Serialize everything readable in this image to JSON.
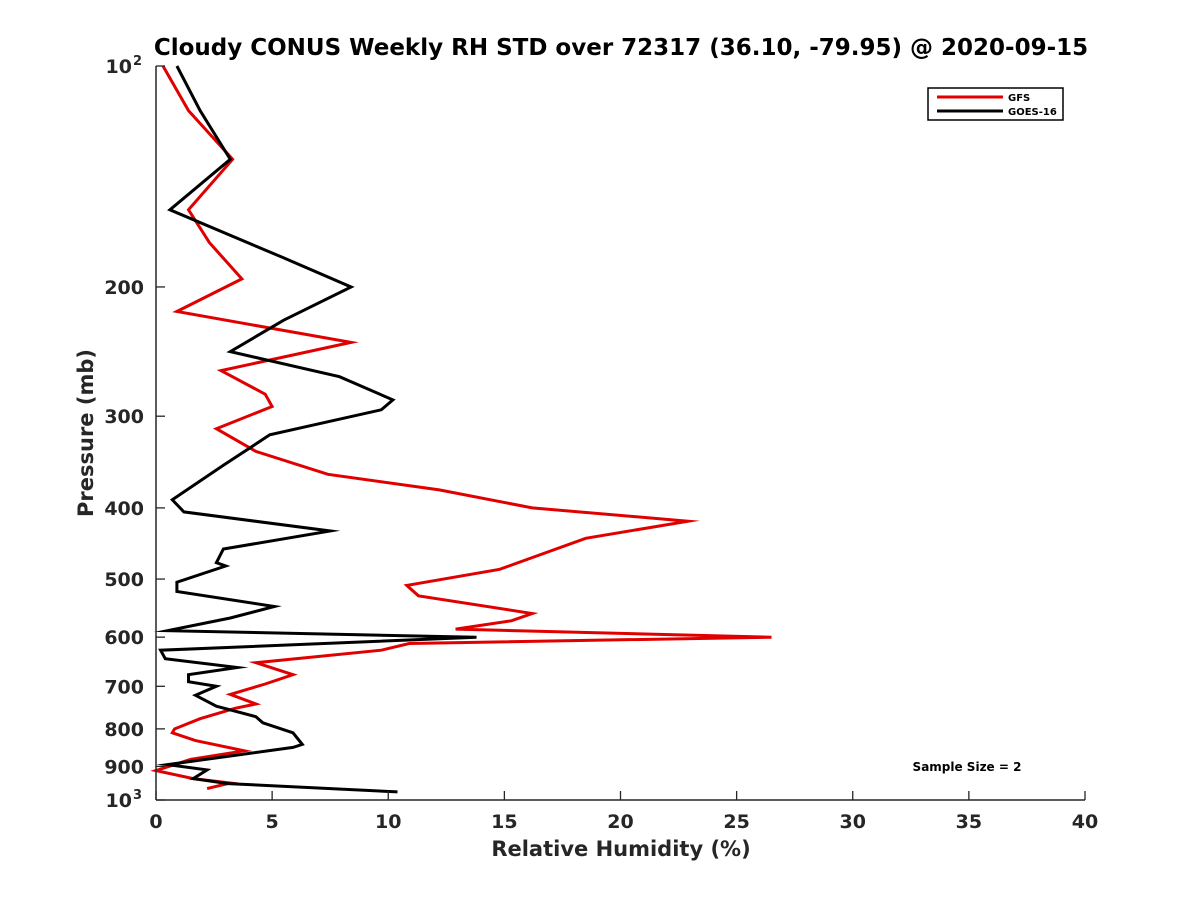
{
  "chart_data": {
    "type": "line",
    "title": "Cloudy CONUS Weekly RH STD over 72317 (36.10, -79.95) @ 2020-09-15",
    "xlabel": "Relative Humidity (%)",
    "ylabel": "Pressure (mb)",
    "xlim": [
      0,
      40
    ],
    "ylim": [
      100,
      1000
    ],
    "y_scale": "log",
    "y_reversed": true,
    "grid": false,
    "legend_position": "top-right",
    "x_ticks": [
      0,
      5,
      10,
      15,
      20,
      25,
      30,
      35,
      40
    ],
    "y_ticks": [
      {
        "value": 100,
        "base": "10",
        "exp": "2"
      },
      {
        "value": 200,
        "label": "200"
      },
      {
        "value": 300,
        "label": "300"
      },
      {
        "value": 400,
        "label": "400"
      },
      {
        "value": 500,
        "label": "500"
      },
      {
        "value": 600,
        "label": "600"
      },
      {
        "value": 700,
        "label": "700"
      },
      {
        "value": 800,
        "label": "800"
      },
      {
        "value": 900,
        "label": "900"
      },
      {
        "value": 1000,
        "base": "10",
        "exp": "3"
      }
    ],
    "annotation": "Sample Size = 2",
    "series": [
      {
        "name": "GFS",
        "color": "#e00000",
        "points": [
          [
            0.3,
            100
          ],
          [
            1.4,
            115
          ],
          [
            3.3,
            134
          ],
          [
            1.4,
            157
          ],
          [
            2.3,
            174
          ],
          [
            3.7,
            195
          ],
          [
            0.9,
            216
          ],
          [
            8.4,
            238
          ],
          [
            2.8,
            260
          ],
          [
            4.7,
            280
          ],
          [
            5.0,
            291
          ],
          [
            2.6,
            312
          ],
          [
            4.3,
            335
          ],
          [
            7.4,
            360
          ],
          [
            12.2,
            378
          ],
          [
            16.2,
            400
          ],
          [
            22.9,
            417
          ],
          [
            18.5,
            440
          ],
          [
            14.8,
            485
          ],
          [
            10.8,
            510
          ],
          [
            11.3,
            527
          ],
          [
            16.2,
            557
          ],
          [
            15.3,
            570
          ],
          [
            12.9,
            585
          ],
          [
            26.5,
            600
          ],
          [
            10.9,
            612
          ],
          [
            9.7,
            625
          ],
          [
            4.3,
            650
          ],
          [
            5.9,
            675
          ],
          [
            4.7,
            695
          ],
          [
            3.2,
            718
          ],
          [
            4.3,
            740
          ],
          [
            3.4,
            750
          ],
          [
            1.9,
            775
          ],
          [
            0.8,
            800
          ],
          [
            0.7,
            810
          ],
          [
            1.7,
            830
          ],
          [
            3.8,
            857
          ],
          [
            1.5,
            880
          ],
          [
            0.0,
            912
          ],
          [
            1.6,
            935
          ],
          [
            3.2,
            948
          ],
          [
            2.2,
            965
          ]
        ]
      },
      {
        "name": "GOES-16",
        "color": "#000000",
        "points": [
          [
            0.9,
            100
          ],
          [
            1.9,
            115
          ],
          [
            3.2,
            134
          ],
          [
            0.6,
            157
          ],
          [
            5.4,
            182
          ],
          [
            8.4,
            200
          ],
          [
            5.5,
            222
          ],
          [
            3.2,
            245
          ],
          [
            7.9,
            265
          ],
          [
            10.2,
            285
          ],
          [
            9.7,
            294
          ],
          [
            4.9,
            318
          ],
          [
            2.9,
            350
          ],
          [
            0.7,
            390
          ],
          [
            1.2,
            405
          ],
          [
            7.5,
            430
          ],
          [
            2.9,
            455
          ],
          [
            2.6,
            475
          ],
          [
            3.0,
            480
          ],
          [
            0.9,
            505
          ],
          [
            0.9,
            520
          ],
          [
            5.1,
            545
          ],
          [
            3.2,
            565
          ],
          [
            0.5,
            588
          ],
          [
            13.8,
            600
          ],
          [
            0.2,
            625
          ],
          [
            0.4,
            642
          ],
          [
            3.5,
            660
          ],
          [
            1.4,
            675
          ],
          [
            1.4,
            690
          ],
          [
            2.6,
            700
          ],
          [
            1.7,
            720
          ],
          [
            2.6,
            745
          ],
          [
            4.3,
            770
          ],
          [
            4.6,
            785
          ],
          [
            5.9,
            810
          ],
          [
            6.3,
            840
          ],
          [
            5.9,
            848
          ],
          [
            0.5,
            895
          ],
          [
            2.2,
            910
          ],
          [
            1.6,
            935
          ],
          [
            3.1,
            950
          ],
          [
            10.4,
            975
          ]
        ]
      }
    ]
  }
}
